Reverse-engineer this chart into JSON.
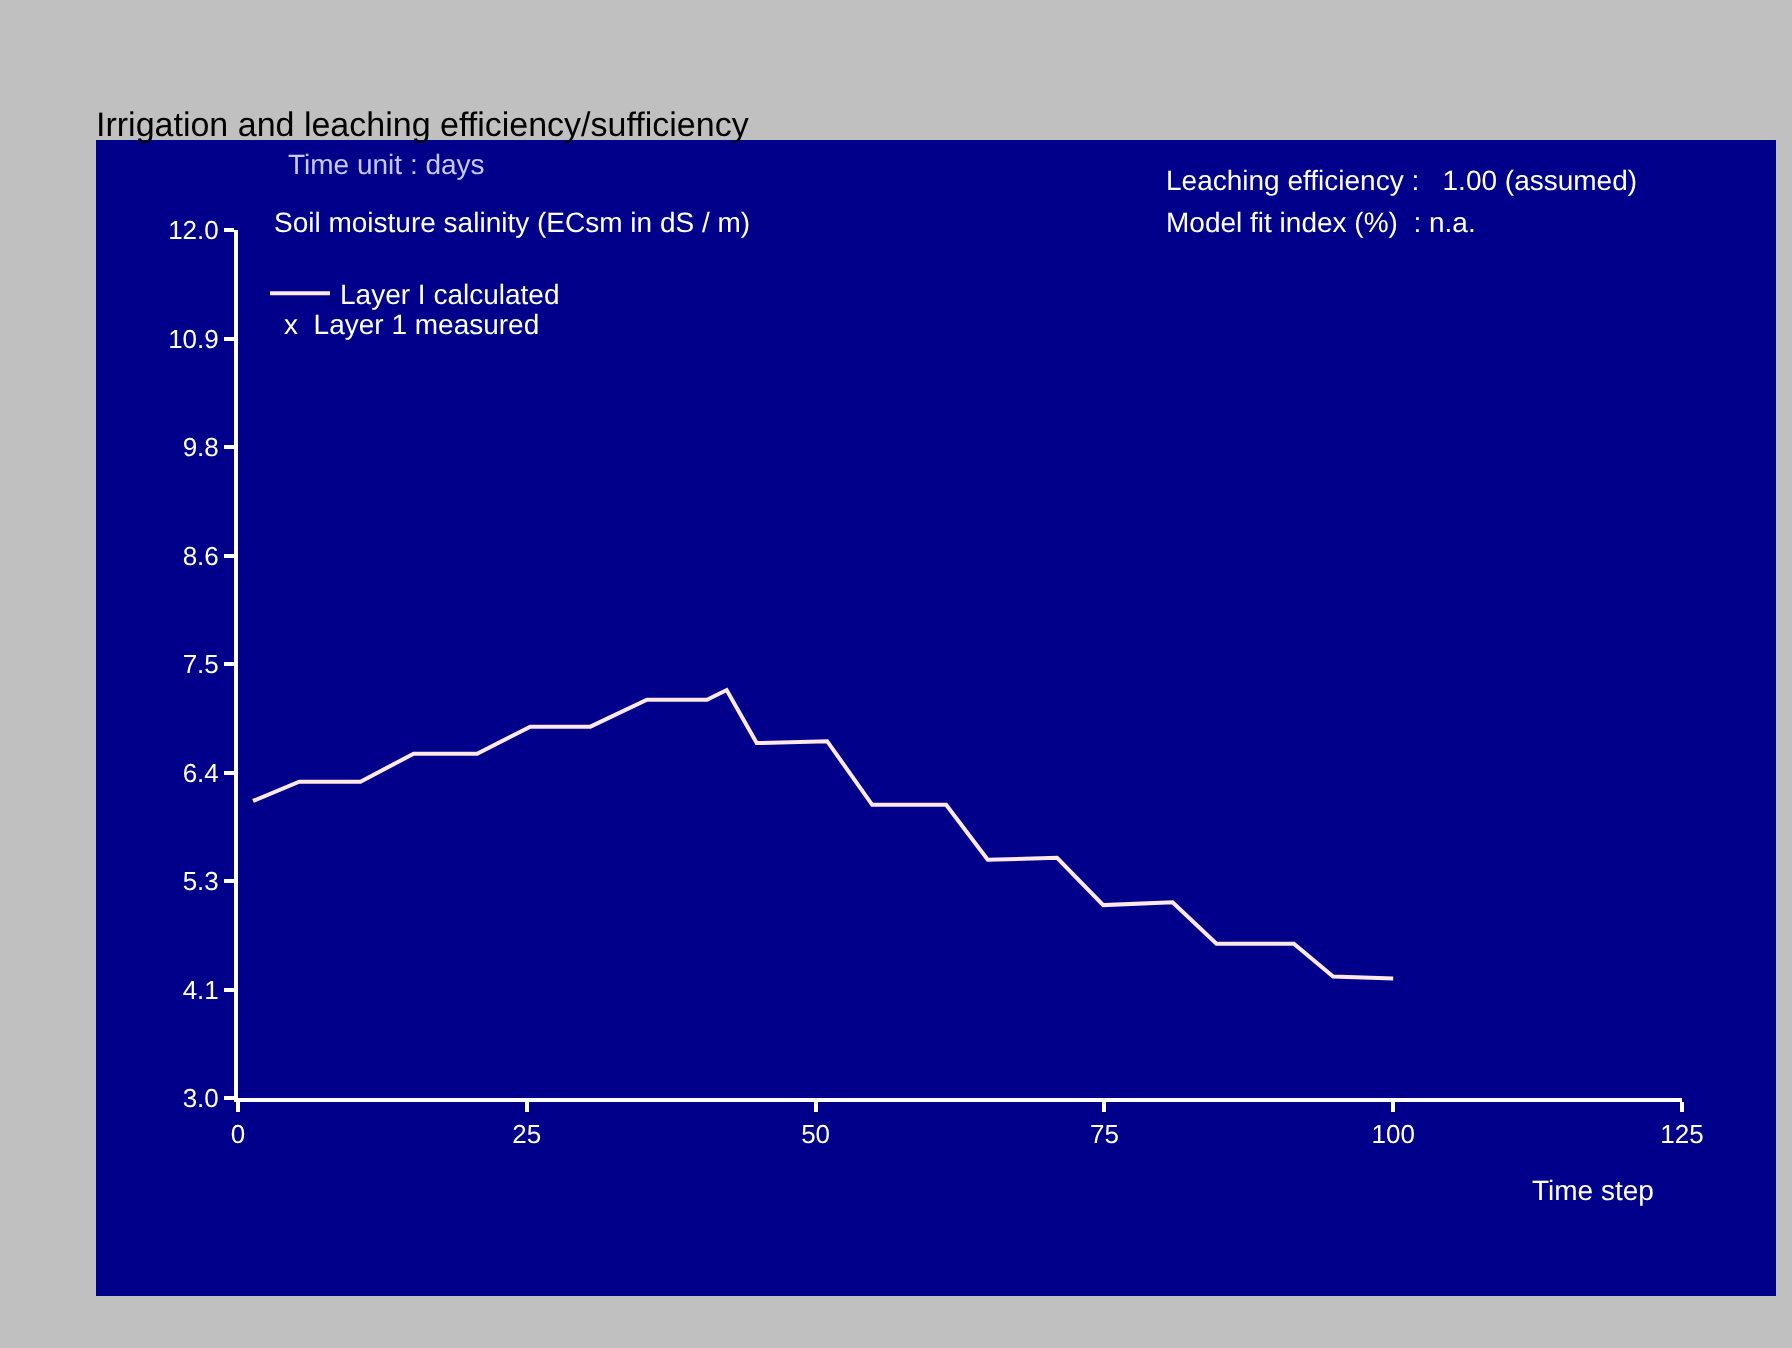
{
  "chart_data": {
    "type": "line",
    "title": "Irrigation and leaching efficiency/sufficiency",
    "ylabel": "Soil moisture salinity (ECsm in dS / m)",
    "xlabel": "Time step",
    "annotations": [
      "Time unit : days",
      "x  Layer 1 measured",
      "Leaching efficiency :   1.00 (assumed)",
      "Model fit index (%)  : n.a."
    ],
    "x": [
      1.3,
      5.3,
      10.6,
      15.2,
      20.7,
      25.3,
      30.5,
      35.4,
      40.6,
      42.3,
      44.9,
      51,
      54.9,
      61.3,
      64.9,
      70.9,
      74.9,
      80.9,
      84.7,
      91.4,
      94.8,
      100
    ],
    "series": [
      {
        "name": "Layer I calculated",
        "color": "#ffe8e8",
        "values": [
          6.08,
          6.28,
          6.28,
          6.57,
          6.57,
          6.85,
          6.85,
          7.13,
          7.13,
          7.23,
          6.68,
          6.7,
          6.04,
          6.04,
          5.47,
          5.49,
          5.0,
          5.03,
          4.6,
          4.6,
          4.26,
          4.24
        ]
      }
    ],
    "xlim": [
      0,
      125
    ],
    "xticks": [
      0,
      25,
      50,
      75,
      100,
      125
    ],
    "ylim": [
      3,
      12
    ],
    "yticks": [
      {
        "value": 3,
        "label": "3.0"
      },
      {
        "value": 4.125,
        "label": "4.1"
      },
      {
        "value": 5.25,
        "label": "5.3"
      },
      {
        "value": 6.375,
        "label": "6.4"
      },
      {
        "value": 7.5,
        "label": "7.5"
      },
      {
        "value": 8.625,
        "label": "8.6"
      },
      {
        "value": 9.75,
        "label": "9.8"
      },
      {
        "value": 10.875,
        "label": "10.9"
      },
      {
        "value": 12,
        "label": "12.0"
      }
    ],
    "grid": false,
    "legend": "top left",
    "marker": "none",
    "line_style": "solid"
  }
}
